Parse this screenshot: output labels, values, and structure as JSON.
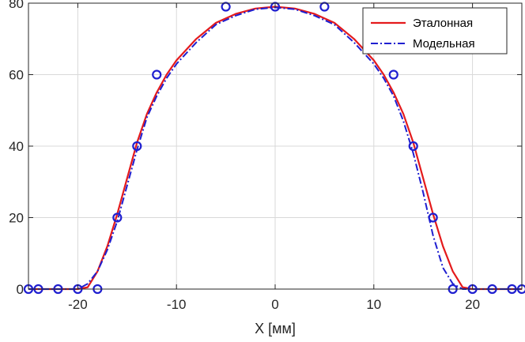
{
  "chart_data": {
    "type": "line",
    "title": "",
    "xlabel": "X [мм]",
    "ylabel": "",
    "xlim": [
      -25,
      25
    ],
    "ylim": [
      0,
      80
    ],
    "xticks": [
      -20,
      -10,
      0,
      10,
      20
    ],
    "yticks": [
      0,
      20,
      40,
      60,
      80
    ],
    "xtick_labels": [
      "-20",
      "-10",
      "0",
      "10",
      "20"
    ],
    "ytick_labels": [
      "0",
      "20",
      "40",
      "60",
      "80"
    ],
    "grid": true,
    "legend_position": "top-right",
    "series": [
      {
        "name": "Эталонная",
        "style": "solid",
        "color": "#e41a1c",
        "x": [
          -25,
          -20,
          -19,
          -18,
          -17,
          -16,
          -15,
          -14,
          -13,
          -12,
          -11,
          -10,
          -8,
          -6,
          -4,
          -2,
          0,
          2,
          4,
          6,
          8,
          10,
          11,
          12,
          13,
          14,
          15,
          16,
          17,
          18,
          19,
          20,
          25
        ],
        "y": [
          0,
          0,
          0.5,
          5,
          12,
          21,
          31,
          41,
          49,
          55,
          60,
          64,
          70,
          74.5,
          77,
          78.5,
          79,
          78.5,
          77,
          74.5,
          70,
          64,
          60,
          55,
          49,
          41,
          31,
          21,
          12,
          5,
          0.5,
          0,
          0
        ]
      },
      {
        "name": "Модельная",
        "style": "dashdot",
        "color": "#1f1fd0",
        "x": [
          -25,
          -20,
          -19,
          -18,
          -17,
          -16,
          -15,
          -14,
          -13,
          -12,
          -11,
          -10,
          -8,
          -6,
          -4,
          -2,
          0,
          2,
          4,
          6,
          8,
          10,
          11,
          12,
          13,
          14,
          15,
          16,
          17,
          18,
          19,
          20,
          25
        ],
        "y": [
          0,
          0,
          1.5,
          5,
          11,
          19,
          29,
          39,
          48,
          54,
          59,
          63,
          69,
          74,
          76.5,
          78.3,
          78.8,
          78.3,
          76.5,
          74,
          69,
          63,
          59,
          54,
          47,
          38,
          27,
          15,
          6,
          1.5,
          0,
          0,
          0
        ]
      },
      {
        "name": "",
        "style": "markers",
        "marker": "circle",
        "color": "#1f1fd0",
        "x": [
          -25,
          -24,
          -22,
          -20,
          -18,
          -16,
          -14,
          -12,
          -5,
          0,
          5,
          12,
          14,
          16,
          18,
          20,
          22,
          24,
          25
        ],
        "y": [
          0,
          0,
          0,
          0,
          0,
          20,
          40,
          60,
          79,
          79,
          79,
          60,
          40,
          20,
          0,
          0,
          0,
          0,
          0
        ]
      }
    ]
  }
}
